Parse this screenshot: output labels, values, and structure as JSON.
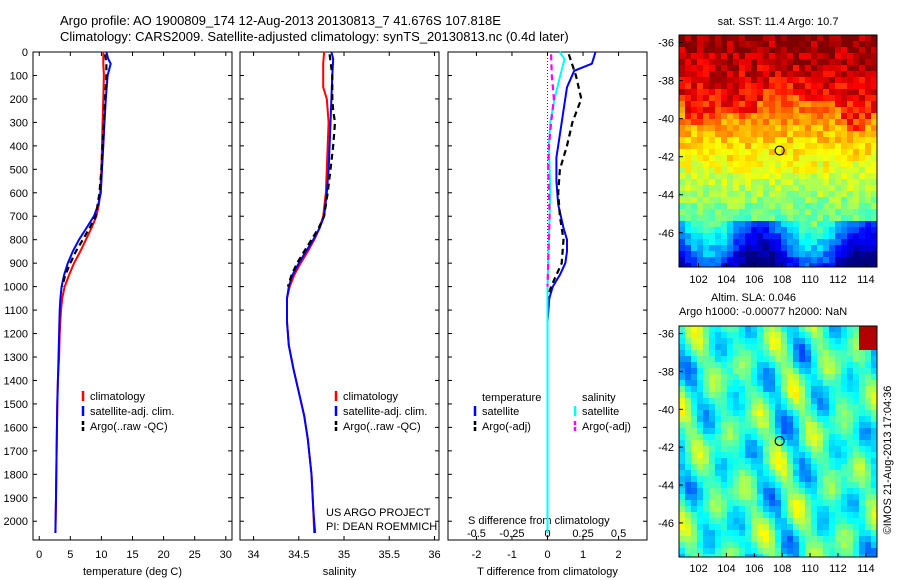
{
  "header": {
    "line1": "Argo profile: AO 1900809_174 12-Aug-2013 20130813_7 41.676S 107.818E",
    "line2": "Climatology: CARS2009. Satellite-adjusted climatology: synTS_20130813.nc (0.4d later)"
  },
  "credits": {
    "project": "US ARGO PROJECT",
    "pi": "PI: DEAN ROEMMICH",
    "imos": "©IMOS 21-Aug-2013 17:04:36"
  },
  "colors": {
    "climatology": "#ff0000",
    "satellite": "#0000ff",
    "argo": "#000000",
    "satellite_s": "#00ffff",
    "argo_s": "#ff00ff"
  },
  "chart_data": [
    {
      "type": "line",
      "xlabel": "temperature (deg C)",
      "ylabel": "",
      "xlim": [
        -1,
        31
      ],
      "ylim": [
        2080,
        0
      ],
      "xticks": [
        "0",
        "5",
        "10",
        "15",
        "20",
        "25",
        "30"
      ],
      "yticks": [
        "0",
        "100",
        "200",
        "300",
        "400",
        "500",
        "600",
        "700",
        "800",
        "900",
        "1000",
        "1100",
        "1200",
        "1300",
        "1400",
        "1500",
        "1600",
        "1700",
        "1800",
        "1900",
        "2000"
      ],
      "legend": [
        "climatology",
        "satellite-adj. clim.",
        "Argo(..raw -QC)"
      ],
      "series": [
        {
          "name": "climatology",
          "color": "#ff0000",
          "style": "solid",
          "x": [
            10.3,
            10.3,
            10.4,
            10.3,
            10.2,
            10.1,
            10.0,
            9.8,
            9.6,
            9.2,
            8.4,
            7.5,
            6.6,
            5.6,
            4.8,
            4.1,
            3.7,
            3.5,
            3.3,
            3.2,
            3.0,
            2.9,
            2.8,
            2.7,
            2.6
          ],
          "y": [
            0,
            50,
            100,
            200,
            300,
            400,
            500,
            600,
            650,
            700,
            750,
            800,
            850,
            900,
            950,
            1000,
            1050,
            1100,
            1200,
            1300,
            1400,
            1500,
            1700,
            1900,
            2050
          ]
        },
        {
          "name": "satellite-adj. clim.",
          "color": "#0000ff",
          "style": "solid",
          "x": [
            10.8,
            11.1,
            11.5,
            11.0,
            10.7,
            10.5,
            10.3,
            10.1,
            9.9,
            9.5,
            8.8,
            7.6,
            6.4,
            5.4,
            4.6,
            4.0,
            3.6,
            3.4,
            3.3,
            3.2,
            3.0,
            2.9,
            2.8,
            2.7,
            2.6
          ],
          "y": [
            0,
            30,
            50,
            100,
            200,
            300,
            400,
            500,
            600,
            650,
            700,
            750,
            800,
            850,
            900,
            950,
            1000,
            1050,
            1100,
            1200,
            1400,
            1500,
            1700,
            1900,
            2050
          ]
        },
        {
          "name": "Argo(..raw -QC)",
          "color": "#000000",
          "style": "dashed",
          "x": [
            10.6,
            10.8,
            10.8,
            10.6,
            10.4,
            10.2,
            10.0,
            9.7,
            9.1,
            8.1,
            7.0,
            5.9,
            5.0,
            4.2,
            3.7
          ],
          "y": [
            10,
            50,
            100,
            200,
            300,
            400,
            500,
            600,
            700,
            750,
            800,
            850,
            900,
            950,
            1000
          ]
        }
      ]
    },
    {
      "type": "line",
      "xlabel": "salinity",
      "ylabel": "",
      "xlim": [
        33.85,
        36.05
      ],
      "ylim": [
        2080,
        0
      ],
      "xticks": [
        "34",
        "34.5",
        "35",
        "35.5",
        "36"
      ],
      "legend": [
        "climatology",
        "satellite-adj. clim.",
        "Argo(..raw -QC)"
      ],
      "series": [
        {
          "name": "climatology",
          "color": "#ff0000",
          "style": "solid",
          "x": [
            34.78,
            34.77,
            34.77,
            34.81,
            34.83,
            34.82,
            34.81,
            34.8,
            34.77,
            34.73,
            34.67,
            34.6,
            34.52,
            34.45,
            34.4,
            34.37,
            34.37,
            34.39,
            34.44,
            34.5,
            34.56,
            34.6,
            34.64,
            34.66,
            34.67
          ],
          "y": [
            0,
            50,
            150,
            200,
            300,
            400,
            500,
            600,
            700,
            750,
            800,
            850,
            900,
            950,
            1000,
            1050,
            1150,
            1250,
            1350,
            1450,
            1550,
            1650,
            1800,
            1950,
            2050
          ]
        },
        {
          "name": "satellite-adj. clim.",
          "color": "#0000ff",
          "style": "solid",
          "x": [
            34.86,
            34.88,
            34.87,
            34.86,
            34.85,
            34.84,
            34.83,
            34.81,
            34.78,
            34.73,
            34.66,
            34.58,
            34.5,
            34.43,
            34.39,
            34.37,
            34.37,
            34.39,
            34.44,
            34.5,
            34.56,
            34.6,
            34.64,
            34.66,
            34.68
          ],
          "y": [
            0,
            30,
            100,
            200,
            300,
            400,
            500,
            600,
            700,
            750,
            800,
            850,
            900,
            950,
            1000,
            1050,
            1150,
            1250,
            1350,
            1450,
            1550,
            1650,
            1800,
            1950,
            2050
          ]
        },
        {
          "name": "Argo(..raw -QC)",
          "color": "#000000",
          "style": "dashed",
          "x": [
            34.84,
            34.87,
            34.87,
            34.88,
            34.9,
            34.88,
            34.85,
            34.82,
            34.78,
            34.72,
            34.64,
            34.56,
            34.48,
            34.42,
            34.38
          ],
          "y": [
            10,
            100,
            200,
            250,
            300,
            400,
            500,
            600,
            700,
            750,
            800,
            850,
            900,
            950,
            1000
          ]
        }
      ]
    },
    {
      "type": "line",
      "xlabel": "T difference from climatology",
      "x2label": "S difference from climatology",
      "ylabel": "",
      "xlim": [
        -2.8,
        2.8
      ],
      "x2lim": [
        -0.7,
        0.7
      ],
      "ylim": [
        2080,
        0
      ],
      "xticks": [
        "-2",
        "-1",
        "0",
        "1",
        "2"
      ],
      "x2ticks": [
        "-0.5",
        "-0.25",
        "0",
        "0.25",
        "0.5"
      ],
      "legend_headers": [
        "temperature",
        "salinity"
      ],
      "legend": [
        "satellite",
        "Argo(-adj)",
        "satellite",
        "Argo(-adj)"
      ],
      "series": [
        {
          "name": "satellite",
          "group": "temperature",
          "color": "#0000ff",
          "style": "solid",
          "x": [
            1.35,
            1.25,
            0.75,
            0.55,
            0.4,
            0.25,
            0.25,
            0.3,
            0.45,
            0.55,
            0.55,
            0.5,
            0.35,
            0.15,
            0.05,
            0.0,
            0.0,
            0.0,
            0.0
          ],
          "y": [
            0,
            50,
            80,
            150,
            300,
            450,
            550,
            650,
            750,
            800,
            850,
            900,
            950,
            1000,
            1050,
            1150,
            1400,
            1700,
            2050
          ]
        },
        {
          "name": "Argo(-adj)",
          "group": "temperature",
          "color": "#000000",
          "style": "dashed",
          "x": [
            0.6,
            0.8,
            0.95,
            0.7,
            0.55,
            0.35,
            0.3,
            0.35,
            0.45,
            0.4,
            0.25,
            0.1,
            0.0
          ],
          "y": [
            10,
            100,
            200,
            300,
            400,
            500,
            600,
            700,
            800,
            900,
            950,
            1000,
            1050
          ]
        },
        {
          "name": "satellite",
          "group": "salinity",
          "color": "#00ffff",
          "style": "solid",
          "x": [
            0.085,
            0.12,
            0.09,
            0.05,
            0.02,
            0.01,
            0.015,
            0.02,
            0.015,
            0.01,
            0.005,
            0.0,
            0.0,
            0.0
          ],
          "y": [
            0,
            30,
            100,
            200,
            300,
            400,
            500,
            600,
            700,
            800,
            900,
            1000,
            1500,
            2050
          ]
        },
        {
          "name": "Argo(-adj)",
          "group": "salinity",
          "color": "#ff00ff",
          "style": "dashed",
          "x": [
            0.025,
            0.03,
            0.045,
            0.025,
            0.01,
            0.005,
            0.01,
            0.015,
            0.01,
            0.005,
            0.0
          ],
          "y": [
            10,
            100,
            200,
            300,
            400,
            500,
            600,
            700,
            800,
            900,
            1000
          ]
        }
      ]
    },
    {
      "type": "heatmap",
      "title": "sat. SST: 11.4 Argo: 10.7",
      "xlim": [
        100.6,
        114.8
      ],
      "ylim": [
        -47.8,
        -35.6
      ],
      "xticks": [
        "102",
        "104",
        "106",
        "108",
        "110",
        "112",
        "114"
      ],
      "yticks": [
        "-36",
        "-38",
        "-40",
        "-42",
        "-44",
        "-46"
      ],
      "colormap": "jet",
      "marker": {
        "lon": 107.818,
        "lat": -41.676
      }
    },
    {
      "type": "heatmap",
      "title": "Altim. SLA: 0.046",
      "subtitle": "Argo h1000: -0.00077 h2000: NaN",
      "xlim": [
        100.6,
        114.8
      ],
      "ylim": [
        -47.8,
        -35.6
      ],
      "xticks": [
        "102",
        "104",
        "106",
        "108",
        "110",
        "112",
        "114"
      ],
      "yticks": [
        "-36",
        "-38",
        "-40",
        "-42",
        "-44",
        "-46"
      ],
      "colormap": "jet",
      "marker": {
        "lon": 107.818,
        "lat": -41.676
      }
    }
  ]
}
